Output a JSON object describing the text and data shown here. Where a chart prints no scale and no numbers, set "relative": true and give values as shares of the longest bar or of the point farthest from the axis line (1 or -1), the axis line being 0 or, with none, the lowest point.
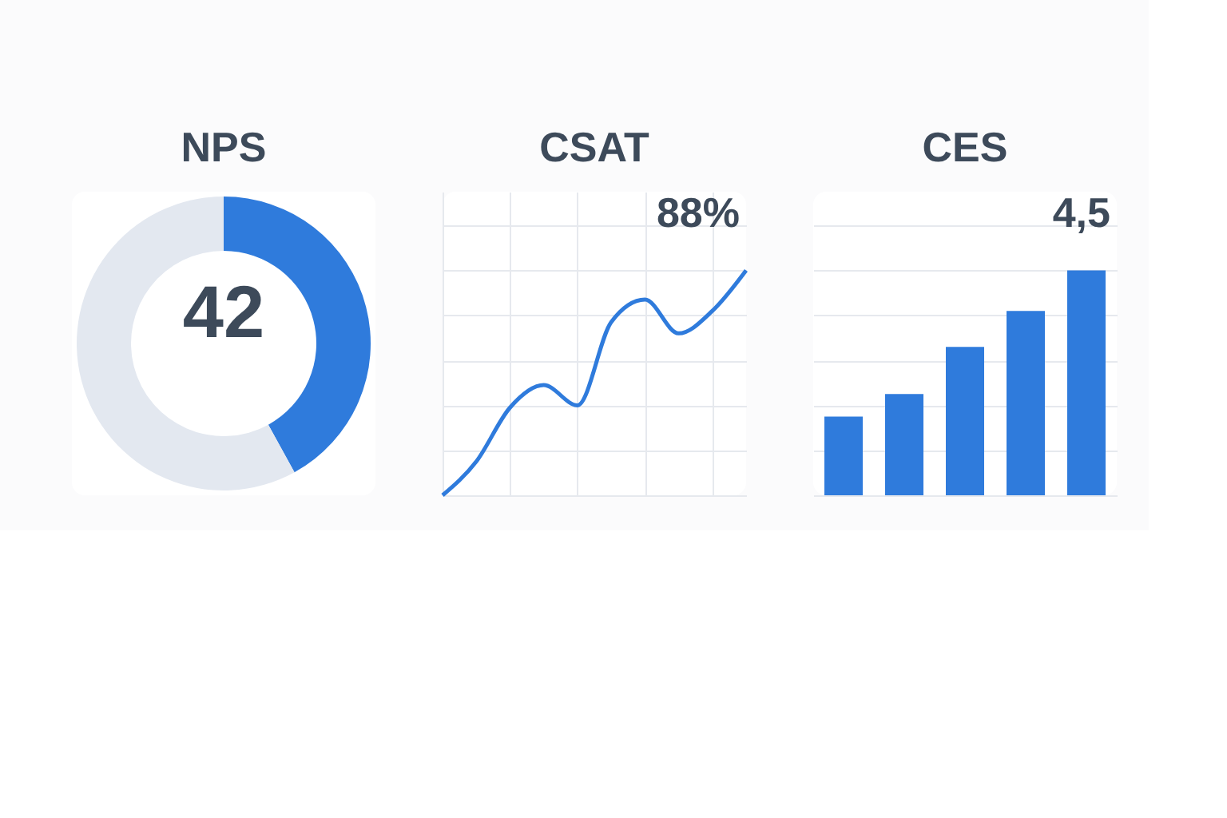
{
  "chart_data": [
    {
      "type": "donut",
      "title": "NPS",
      "categories": [
        null,
        null
      ],
      "values": [
        42,
        58
      ],
      "colors": [
        "#2f7bdc",
        "#e3e8f0"
      ],
      "annotations": [
        "42"
      ],
      "legend": false
    },
    {
      "type": "line",
      "title": "CSAT",
      "relative": true,
      "categories": [
        null,
        null,
        null,
        null,
        null,
        null,
        null,
        null,
        null,
        null
      ],
      "series": [
        {
          "color": "#2f7bdc",
          "values": [
            0,
            0.15,
            0.39,
            0.49,
            0.4,
            0.77,
            0.87,
            0.72,
            0.82,
            1
          ]
        }
      ],
      "grid": true,
      "annotations": [
        "88%"
      ]
    },
    {
      "type": "bar",
      "title": "CES",
      "relative": true,
      "categories": [
        null,
        null,
        null,
        null,
        null
      ],
      "series": [
        {
          "color": "#2f7bdc",
          "values": [
            0.35,
            0.45,
            0.66,
            0.82,
            1
          ]
        }
      ],
      "grid": "y",
      "annotations": [
        "4,5"
      ]
    }
  ]
}
